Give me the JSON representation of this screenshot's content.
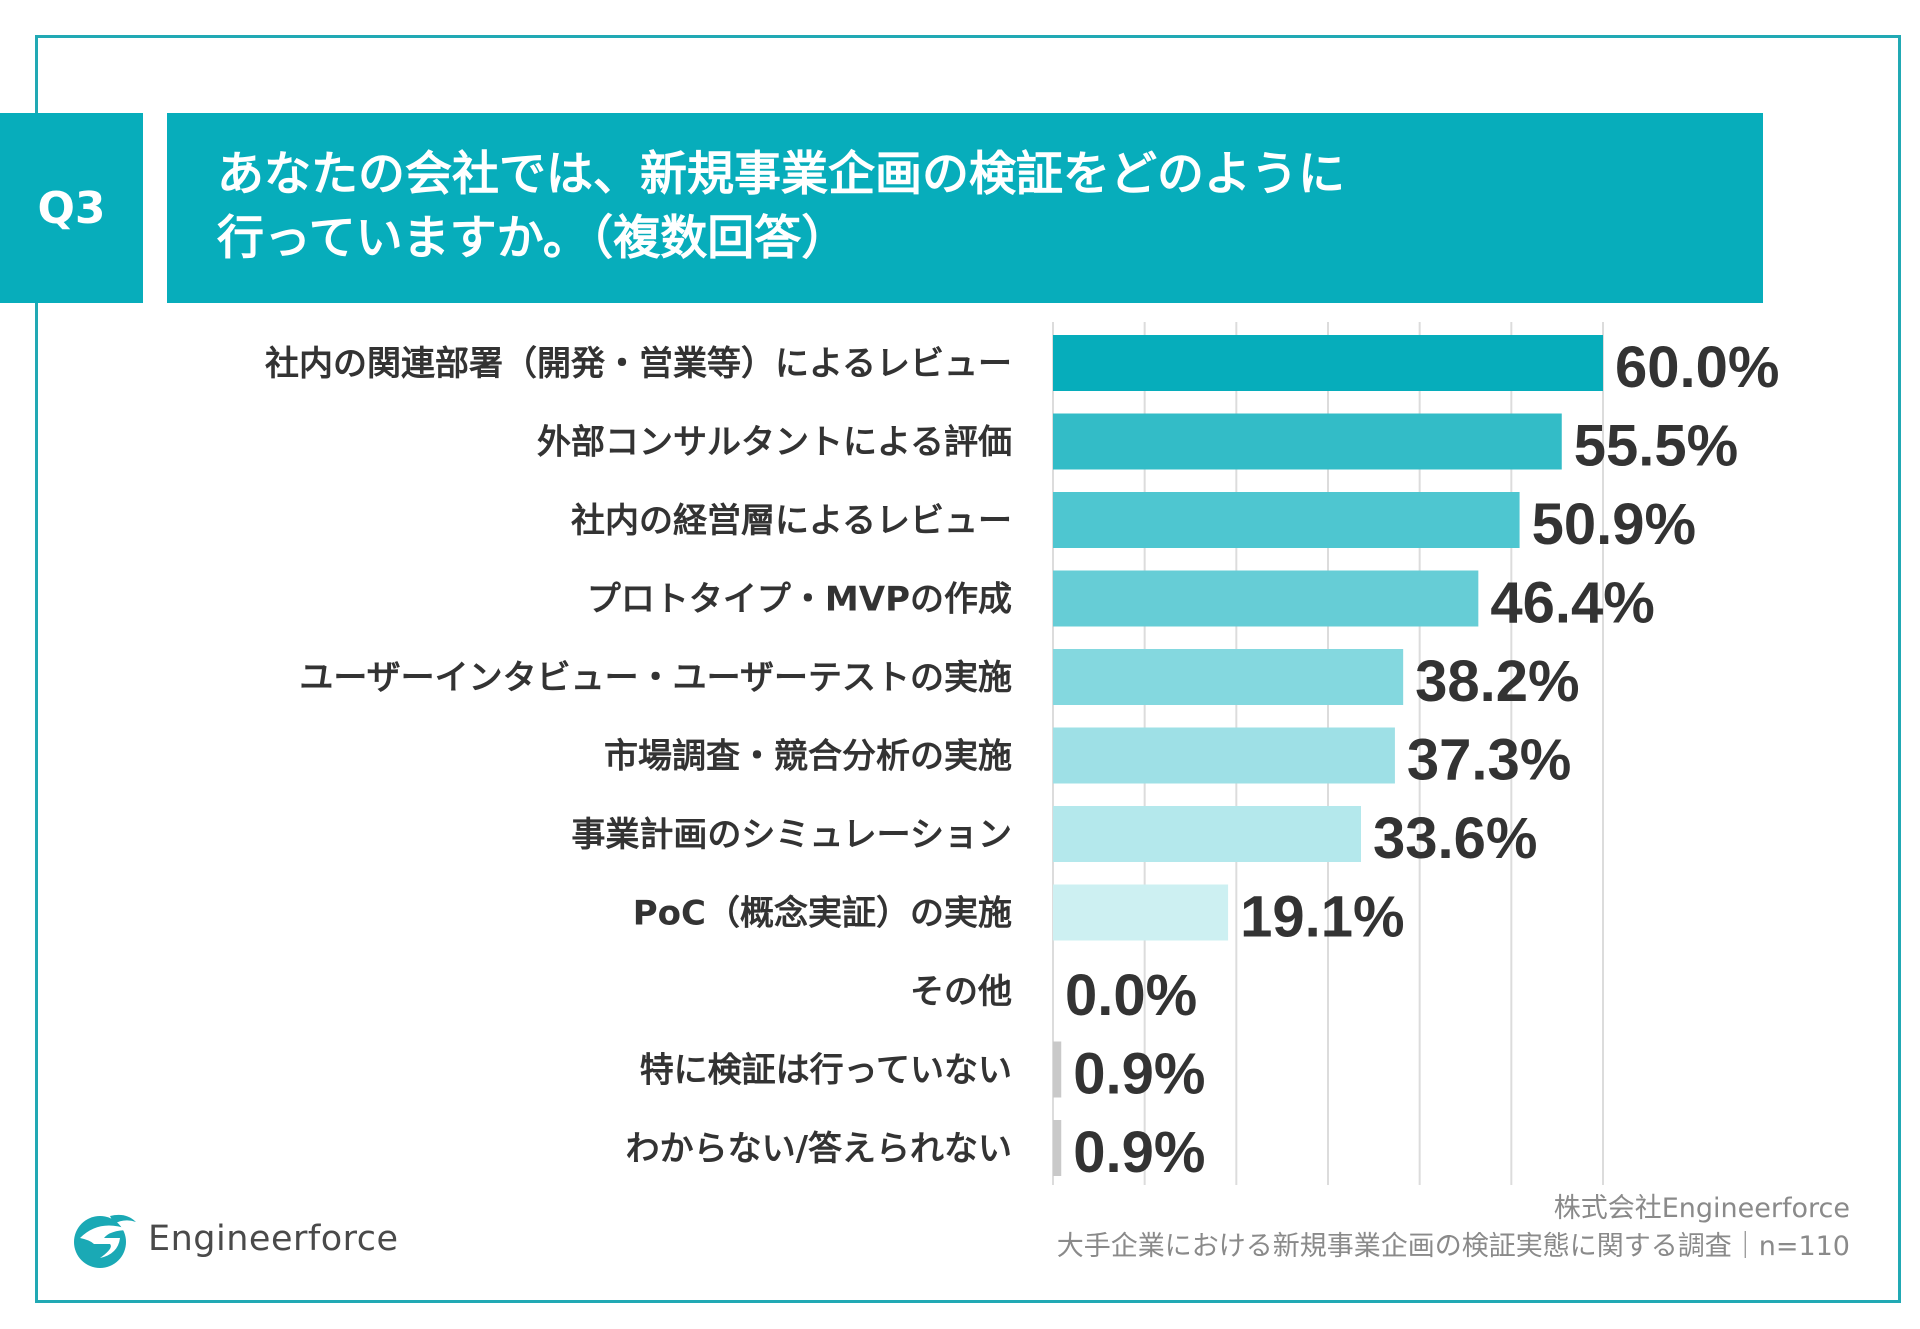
{
  "header": {
    "badge": "Q3",
    "title_line1": "あなたの会社では、新規事業企画の検証をどのように",
    "title_line2": "行っていますか。（複数回答）"
  },
  "colors": {
    "brand": "#07adbb",
    "frame": "#21a9b4",
    "bars": [
      "#06adbb",
      "#33bcc7",
      "#4ec6d0",
      "#66cdd6",
      "#84d8df",
      "#9ee0e6",
      "#b4e8ec",
      "#cdf0f2",
      "#c9c9c9",
      "#c9c9c9",
      "#c9c9c9"
    ],
    "grid": "#dcdcdc",
    "label_text": "#333333"
  },
  "chart_data": {
    "type": "bar",
    "orientation": "horizontal",
    "categories": [
      "社内の関連部署（開発・営業等）によるレビュー",
      "外部コンサルタントによる評価",
      "社内の経営層によるレビュー",
      "プロトタイプ・MVPの作成",
      "ユーザーインタビュー・ユーザーテストの実施",
      "市場調査・競合分析の実施",
      "事業計画のシミュレーション",
      "PoC（概念実証）の実施",
      "その他",
      "特に検証は行っていない",
      "わからない/答えられない"
    ],
    "values": [
      60.0,
      55.5,
      50.9,
      46.4,
      38.2,
      37.3,
      33.6,
      19.1,
      0.0,
      0.9,
      0.9
    ],
    "value_labels": [
      "60.0%",
      "55.5%",
      "50.9%",
      "46.4%",
      "38.2%",
      "37.3%",
      "33.6%",
      "19.1%",
      "0.0%",
      "0.9%",
      "0.9%"
    ],
    "xlim": [
      0,
      60
    ],
    "gridlines": [
      0,
      10,
      20,
      30,
      40,
      50,
      60
    ],
    "unit": "%"
  },
  "footer": {
    "company": "株式会社Engineerforce",
    "survey": "大手企業における新規事業企画の検証実態に関する調査｜n=110"
  },
  "logo": {
    "name": "Engineerforce",
    "icon": "engineerforce-logo-icon"
  }
}
